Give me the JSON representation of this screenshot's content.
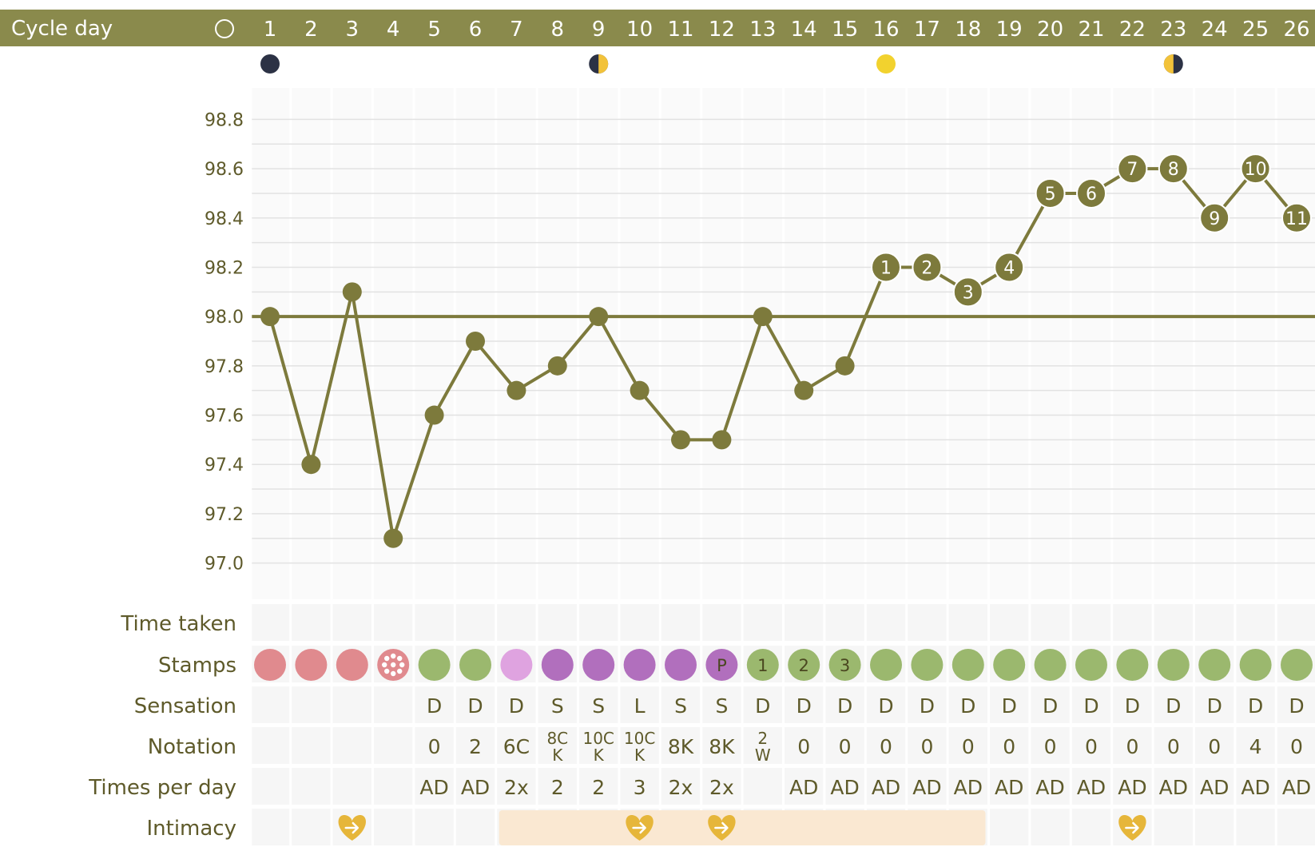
{
  "header": {
    "title": "Cycle day"
  },
  "colors": {
    "header_bg": "#8a8a4c",
    "line": "#7d7a3c",
    "label": "#5e5a2a",
    "grid": "#e2e2e2",
    "cell": "#f6f6f6",
    "stamp_pink": "#e08a8e",
    "stamp_green": "#9bb86e",
    "stamp_light_purple": "#dfa3e0",
    "stamp_purple": "#b16fbd",
    "fertile_bar": "#fae8d2",
    "heart": "#e6b63a"
  },
  "row_labels": {
    "time_taken": "Time taken",
    "stamps": "Stamps",
    "sensation": "Sensation",
    "notation": "Notation",
    "times_per_day": "Times per day",
    "intimacy": "Intimacy"
  },
  "moon_phases": [
    {
      "day": 1,
      "phase": "new-moon-icon"
    },
    {
      "day": 9,
      "phase": "first-quarter-moon-icon"
    },
    {
      "day": 16,
      "phase": "full-moon-icon"
    },
    {
      "day": 23,
      "phase": "last-quarter-moon-icon"
    }
  ],
  "chart_data": {
    "type": "line",
    "title": "",
    "xlabel": "Cycle day",
    "ylabel": "",
    "days": [
      1,
      2,
      3,
      4,
      5,
      6,
      7,
      8,
      9,
      10,
      11,
      12,
      13,
      14,
      15,
      16,
      17,
      18,
      19,
      20,
      21,
      22,
      23,
      24,
      25,
      26
    ],
    "y_ticks": [
      "98.8",
      "98.6",
      "98.4",
      "98.2",
      "98.0",
      "97.8",
      "97.6",
      "97.4",
      "97.2",
      "97.0"
    ],
    "ylim": [
      96.95,
      98.85
    ],
    "coverline": 98.0,
    "temperatures": [
      98.0,
      97.4,
      98.1,
      97.1,
      97.6,
      97.9,
      97.7,
      97.8,
      98.0,
      97.7,
      97.5,
      97.5,
      98.0,
      97.7,
      97.8,
      98.2,
      98.2,
      98.1,
      98.2,
      98.5,
      98.5,
      98.6,
      98.6,
      98.4,
      98.6,
      98.4
    ],
    "point_labels": [
      "",
      "",
      "",
      "",
      "",
      "",
      "",
      "",
      "",
      "",
      "",
      "",
      "",
      "",
      "",
      "1",
      "2",
      "3",
      "4",
      "5",
      "6",
      "7",
      "8",
      "9",
      "10",
      "11"
    ],
    "stamps": [
      {
        "type": "pink",
        "label": ""
      },
      {
        "type": "pink",
        "label": ""
      },
      {
        "type": "pink",
        "label": ""
      },
      {
        "type": "pink-baby",
        "label": ""
      },
      {
        "type": "green",
        "label": ""
      },
      {
        "type": "green",
        "label": ""
      },
      {
        "type": "light-purple",
        "label": ""
      },
      {
        "type": "purple",
        "label": ""
      },
      {
        "type": "purple",
        "label": ""
      },
      {
        "type": "purple",
        "label": ""
      },
      {
        "type": "purple",
        "label": ""
      },
      {
        "type": "purple",
        "label": "P"
      },
      {
        "type": "green",
        "label": "1"
      },
      {
        "type": "green",
        "label": "2"
      },
      {
        "type": "green",
        "label": "3"
      },
      {
        "type": "green",
        "label": ""
      },
      {
        "type": "green",
        "label": ""
      },
      {
        "type": "green",
        "label": ""
      },
      {
        "type": "green",
        "label": ""
      },
      {
        "type": "green",
        "label": ""
      },
      {
        "type": "green",
        "label": ""
      },
      {
        "type": "green",
        "label": ""
      },
      {
        "type": "green",
        "label": ""
      },
      {
        "type": "green",
        "label": ""
      },
      {
        "type": "green",
        "label": ""
      },
      {
        "type": "green",
        "label": ""
      }
    ],
    "sensation": [
      "",
      "",
      "",
      "",
      "D",
      "D",
      "D",
      "S",
      "S",
      "L",
      "S",
      "S",
      "D",
      "D",
      "D",
      "D",
      "D",
      "D",
      "D",
      "D",
      "D",
      "D",
      "D",
      "D",
      "D",
      "D"
    ],
    "notation": [
      [
        ""
      ],
      [
        ""
      ],
      [
        ""
      ],
      [
        ""
      ],
      [
        "0"
      ],
      [
        "2"
      ],
      [
        "6C"
      ],
      [
        "8C",
        "K"
      ],
      [
        "10C",
        "K"
      ],
      [
        "10C",
        "K"
      ],
      [
        "8K"
      ],
      [
        "8K"
      ],
      [
        "2",
        "W"
      ],
      [
        "0"
      ],
      [
        "0"
      ],
      [
        "0"
      ],
      [
        "0"
      ],
      [
        "0"
      ],
      [
        "0"
      ],
      [
        "0"
      ],
      [
        "0"
      ],
      [
        "0"
      ],
      [
        "0"
      ],
      [
        "0"
      ],
      [
        "4"
      ],
      [
        "0"
      ]
    ],
    "times_per_day": [
      "",
      "",
      "",
      "",
      "AD",
      "AD",
      "2x",
      "2",
      "2",
      "3",
      "2x",
      "2x",
      "",
      "AD",
      "AD",
      "AD",
      "AD",
      "AD",
      "AD",
      "AD",
      "AD",
      "AD",
      "AD",
      "AD",
      "AD",
      "AD"
    ],
    "intimacy_days": [
      3,
      10,
      12,
      22
    ],
    "fertile_window": [
      7,
      18
    ]
  }
}
